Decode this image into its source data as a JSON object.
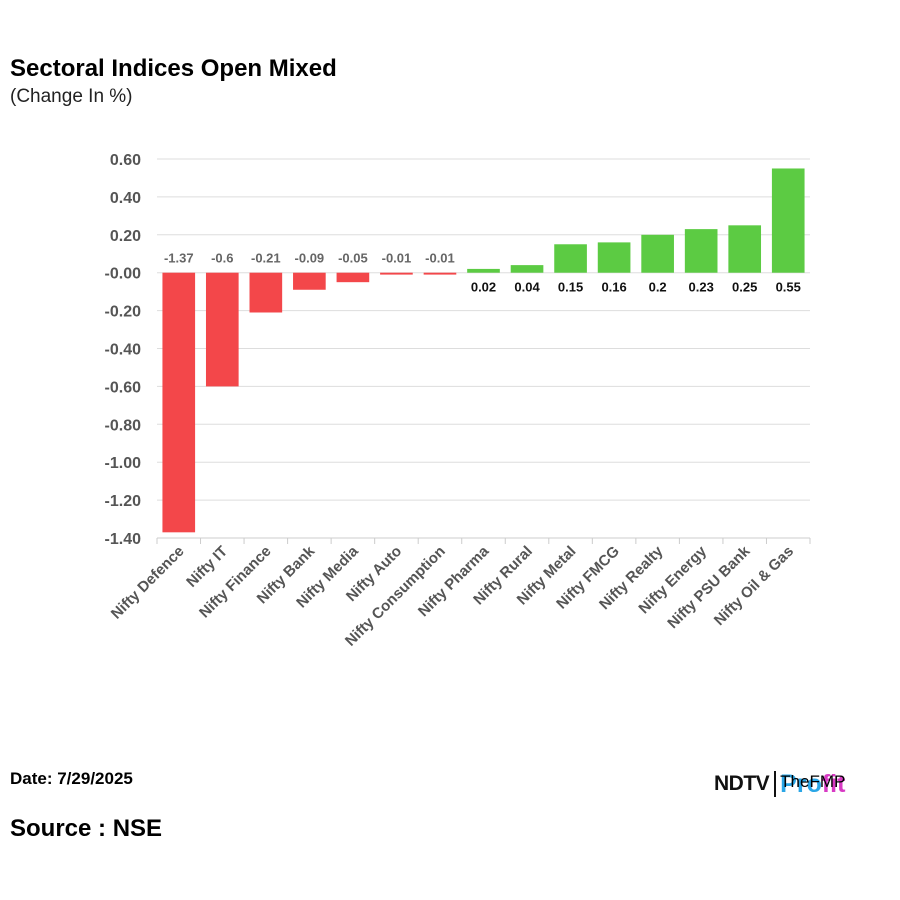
{
  "header": {
    "title": "Sectoral Indices Open Mixed",
    "subtitle": "(Change In %)"
  },
  "footer": {
    "date": "Date: 7/29/2025",
    "source": "Source : NSE"
  },
  "logo": {
    "ndtv": "NDTV",
    "profit_a": "Pro",
    "profit_b": "fit",
    "watermark": "TheFMP"
  },
  "colors": {
    "negative": "#f3474a",
    "positive": "#5ccb43",
    "grid": "#dddddd",
    "axis_text": "#555555"
  },
  "chart_data": {
    "type": "bar",
    "title": "Sectoral Indices Open Mixed",
    "subtitle": "(Change In %)",
    "xlabel": "",
    "ylabel": "",
    "ylim": [
      -1.4,
      0.6
    ],
    "yticks": [
      0.6,
      0.4,
      0.2,
      0.0,
      -0.2,
      -0.4,
      -0.6,
      -0.8,
      -1.0,
      -1.2,
      -1.4
    ],
    "ytick_labels": [
      "0.60",
      "0.40",
      "0.20",
      "-0.00",
      "-0.20",
      "-0.40",
      "-0.60",
      "-0.80",
      "-1.00",
      "-1.20",
      "-1.40"
    ],
    "grid": true,
    "categories": [
      "Nifty Defence",
      "Nifty IT",
      "Nifty Finance",
      "Nifty Bank",
      "Nifty Media",
      "Nifty Auto",
      "Nifty Consumption",
      "Nifty Pharma",
      "Nifty Rural",
      "Nifty Metal",
      "Nifty FMCG",
      "Nifty Realty",
      "Nifty Energy",
      "Nifty PSU Bank",
      "Nifty Oil & Gas"
    ],
    "values": [
      -1.37,
      -0.6,
      -0.21,
      -0.09,
      -0.05,
      -0.01,
      -0.01,
      0.02,
      0.04,
      0.15,
      0.16,
      0.2,
      0.23,
      0.25,
      0.55
    ],
    "value_labels": [
      "-1.37",
      "-0.6",
      "-0.21",
      "-0.09",
      "-0.05",
      "-0.01",
      "-0.01",
      "0.02",
      "0.04",
      "0.15",
      "0.16",
      "0.2",
      "0.23",
      "0.25",
      "0.55"
    ]
  }
}
